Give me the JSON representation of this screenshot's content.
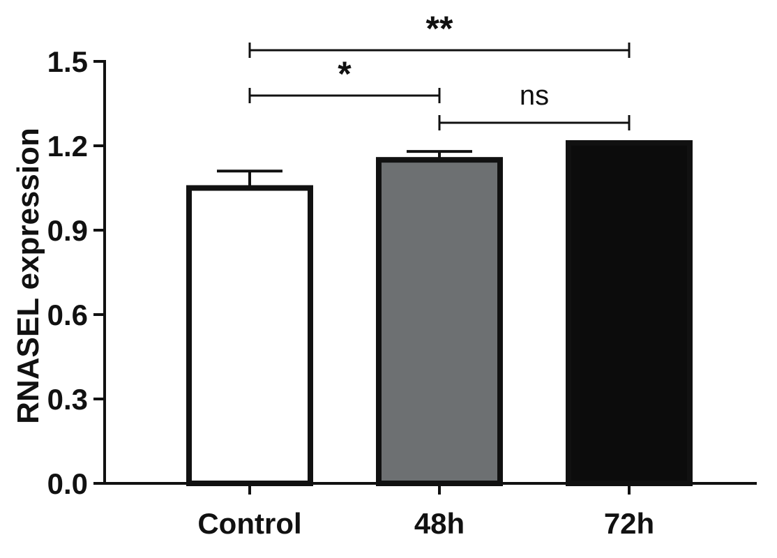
{
  "chart_data": {
    "type": "bar",
    "title": "",
    "xlabel": "",
    "ylabel": "RNASEL expression",
    "ylim": [
      0,
      1.5
    ],
    "yticks": [
      "0.0",
      "0.3",
      "0.6",
      "0.9",
      "1.2",
      "1.5"
    ],
    "grid": false,
    "legend": "none",
    "categories": [
      "Control",
      "48h",
      "72h"
    ],
    "values": [
      1.05,
      1.15,
      1.21
    ],
    "errors": [
      0.06,
      0.03,
      0.005
    ],
    "colors": [
      "#ffffff",
      "#6d7072",
      "#0c0c0c"
    ],
    "edge_color": "#111111",
    "significance": [
      {
        "from": 0,
        "to": 2,
        "label": "**"
      },
      {
        "from": 0,
        "to": 1,
        "label": "*"
      },
      {
        "from": 1,
        "to": 2,
        "label": "ns"
      }
    ]
  }
}
